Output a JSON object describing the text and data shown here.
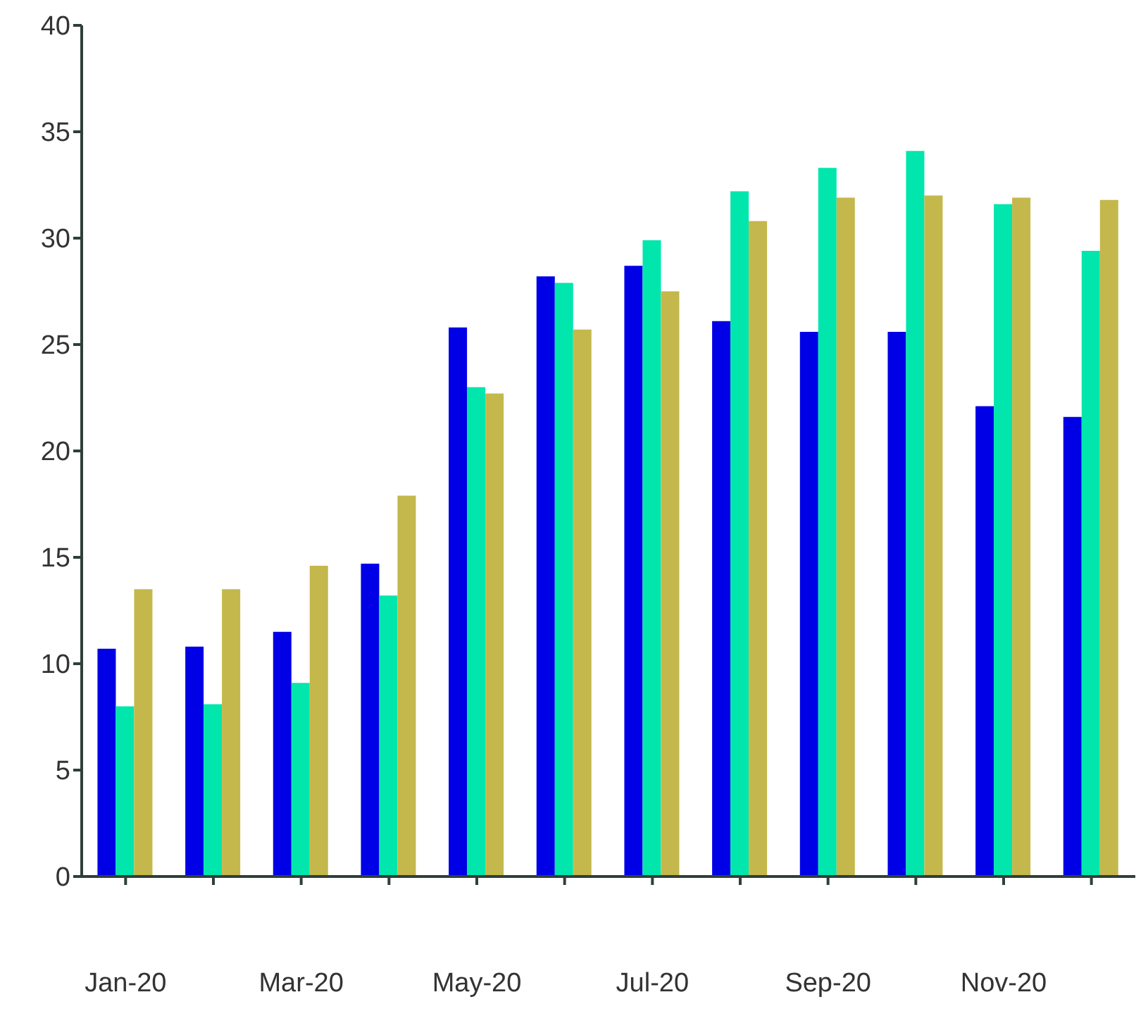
{
  "chart_data": {
    "type": "bar",
    "categories": [
      "Jan-20",
      null,
      "Mar-20",
      null,
      "May-20",
      null,
      "Jul-20",
      null,
      "Sep-20",
      null,
      "Nov-20",
      null
    ],
    "series": [
      {
        "color": "#0000e6",
        "values": [
          10.7,
          10.8,
          11.5,
          14.7,
          25.8,
          28.2,
          28.7,
          26.1,
          25.6,
          25.6,
          22.1,
          21.6
        ]
      },
      {
        "color": "#00e6ac",
        "values": [
          8.0,
          8.1,
          9.1,
          13.2,
          23.0,
          27.9,
          29.9,
          32.2,
          33.3,
          34.1,
          31.6,
          29.4
        ]
      },
      {
        "color": "#c4b84c",
        "values": [
          13.5,
          13.5,
          14.6,
          17.9,
          22.7,
          25.7,
          27.5,
          30.8,
          31.9,
          32.0,
          31.9,
          31.8
        ]
      }
    ],
    "ylim": [
      0,
      40
    ],
    "yticks": [
      0,
      5,
      10,
      15,
      20,
      25,
      30,
      35,
      40
    ],
    "grid": false,
    "legend": false
  }
}
